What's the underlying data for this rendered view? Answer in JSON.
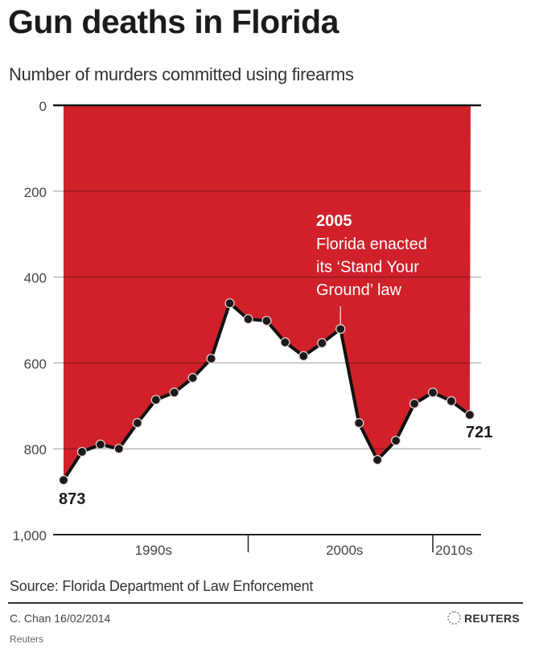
{
  "header": {
    "title": "Gun deaths in Florida",
    "subtitle": "Number of murders committed using firearms"
  },
  "chart_data": {
    "type": "area",
    "title": "Gun deaths in Florida",
    "subtitle": "Number of murders committed using firearms",
    "xlabel": "",
    "ylabel": "Number of murders committed using firearms",
    "y_inverted": true,
    "ylim": [
      0,
      1000
    ],
    "y_ticks": [
      "0",
      "200",
      "400",
      "600",
      "800",
      "1,000"
    ],
    "x_tick_labels": [
      "1990s",
      "2000s",
      "2010s"
    ],
    "x": [
      1990,
      1991,
      1992,
      1993,
      1994,
      1995,
      1996,
      1997,
      1998,
      1999,
      2000,
      2001,
      2002,
      2003,
      2004,
      2005,
      2006,
      2007,
      2008,
      2009,
      2010,
      2011,
      2012
    ],
    "values": [
      873,
      807,
      790,
      800,
      740,
      686,
      669,
      635,
      590,
      461,
      498,
      502,
      552,
      584,
      554,
      521,
      740,
      826,
      781,
      695,
      669,
      689,
      721
    ],
    "labels": {
      "first": "873",
      "last": "721"
    },
    "annotation": {
      "year_label": "2005",
      "lines": [
        "Florida enacted",
        "its ‘Stand Your",
        "Ground’ law"
      ],
      "x": 2005
    },
    "grid": true,
    "fill_color": "#d0202a",
    "line_color": "#111111"
  },
  "footer": {
    "source": "Source: Florida Department of Law Enforcement",
    "credit": "C. Chan  16/02/2014",
    "brand": "REUTERS",
    "caption": "Reuters"
  }
}
